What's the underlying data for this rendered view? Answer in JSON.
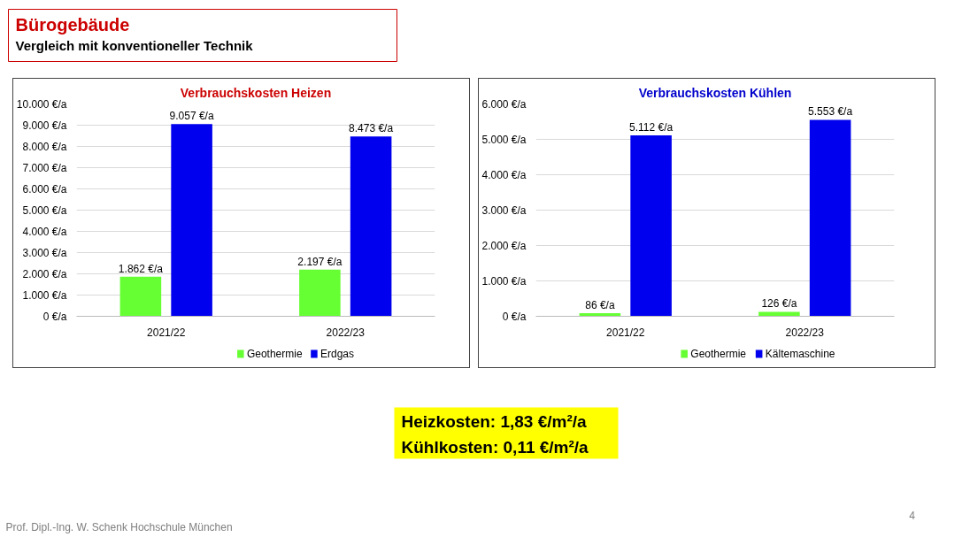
{
  "chart_data": [
    {
      "type": "other",
      "title": "Bürogebäude",
      "subtitle": "Vergleich mit konventioneller Technik",
      "annotations": [
        "Heizkosten: 1,83 €/m²/a",
        "Kühlkosten: 0,11 €/m²/a",
        "Prof. Dipl.-Ing. W. Schenk Hochschule München",
        "4"
      ]
    },
    {
      "type": "bar",
      "title": "Verbrauchskosten Heizen",
      "categories": [
        "2021/22",
        "2022/23"
      ],
      "series": [
        {
          "name": "Geothermie",
          "color": "#66ff33",
          "values": [
            1862,
            2197
          ],
          "value_labels": [
            "1.862 €/a",
            "2.197 €/a"
          ]
        },
        {
          "name": "Erdgas",
          "color": "#0000ee",
          "values": [
            9057,
            8473
          ],
          "value_labels": [
            "9.057 €/a",
            "8.473 €/a"
          ]
        }
      ],
      "ylim": [
        0,
        10000
      ],
      "yticks": [
        {
          "value": 0,
          "label": "0 €/a"
        },
        {
          "value": 1000,
          "label": "1.000 €/a"
        },
        {
          "value": 2000,
          "label": "2.000 €/a"
        },
        {
          "value": 3000,
          "label": "3.000 €/a"
        },
        {
          "value": 4000,
          "label": "4.000 €/a"
        },
        {
          "value": 5000,
          "label": "5.000 €/a"
        },
        {
          "value": 6000,
          "label": "6.000 €/a"
        },
        {
          "value": 7000,
          "label": "7.000 €/a"
        },
        {
          "value": 8000,
          "label": "8.000 €/a"
        },
        {
          "value": 9000,
          "label": "9.000 €/a"
        },
        {
          "value": 10000,
          "label": "10.000 €/a"
        }
      ],
      "grid": "y",
      "legend": "bottom"
    },
    {
      "type": "bar",
      "title": "Verbrauchskosten Kühlen",
      "categories": [
        "2021/22",
        "2022/23"
      ],
      "series": [
        {
          "name": "Geothermie",
          "color": "#66ff33",
          "values": [
            86,
            126
          ],
          "value_labels": [
            "86 €/a",
            "126 €/a"
          ]
        },
        {
          "name": "Kältemaschine",
          "color": "#0000ee",
          "values": [
            5112,
            5553
          ],
          "value_labels": [
            "5.112 €/a",
            "5.553 €/a"
          ]
        }
      ],
      "ylim": [
        0,
        6000
      ],
      "yticks": [
        {
          "value": 0,
          "label": "0 €/a"
        },
        {
          "value": 1000,
          "label": "1.000 €/a"
        },
        {
          "value": 2000,
          "label": "2.000 €/a"
        },
        {
          "value": 3000,
          "label": "3.000 €/a"
        },
        {
          "value": 4000,
          "label": "4.000 €/a"
        },
        {
          "value": 5000,
          "label": "5.000 €/a"
        },
        {
          "value": 6000,
          "label": "6.000 €/a"
        }
      ],
      "grid": "y",
      "legend": "bottom"
    }
  ]
}
